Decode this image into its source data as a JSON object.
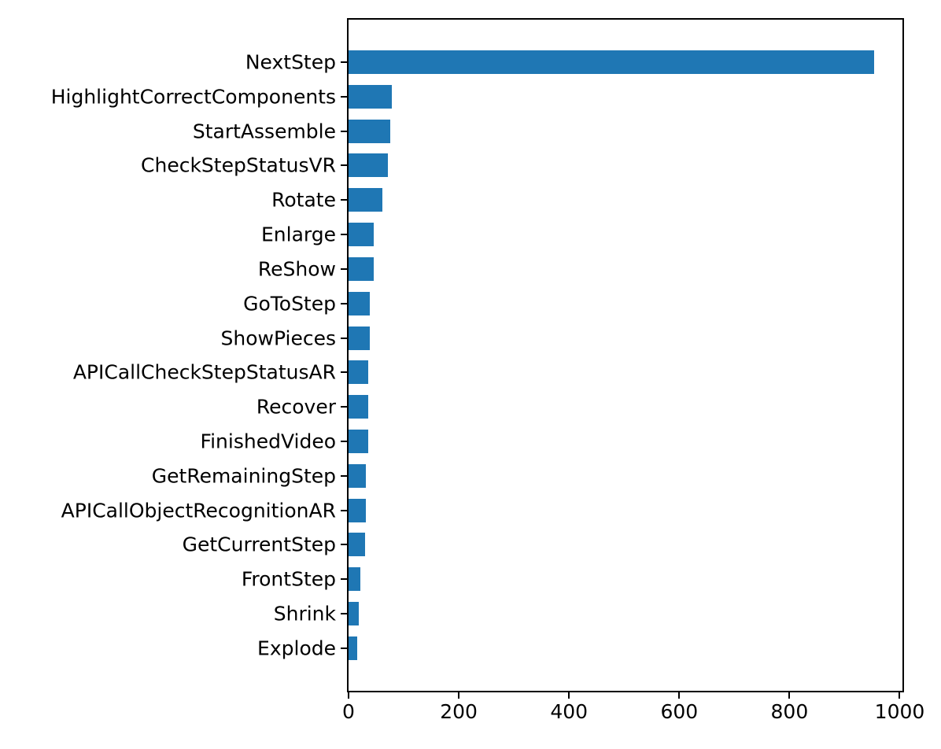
{
  "chart_data": {
    "type": "bar",
    "orientation": "horizontal",
    "categories": [
      "NextStep",
      "HighlightCorrectComponents",
      "StartAssemble",
      "CheckStepStatusVR",
      "Rotate",
      "Enlarge",
      "ReShow",
      "GoToStep",
      "ShowPieces",
      "APICallCheckStepStatusAR",
      "Recover",
      "FinishedVideo",
      "GetRemainingStep",
      "APICallObjectRecognitionAR",
      "GetCurrentStep",
      "FrontStep",
      "Shrink",
      "Explode"
    ],
    "values": [
      954,
      79,
      76,
      72,
      61,
      46,
      45,
      39,
      38,
      36,
      36,
      35,
      31,
      31,
      30,
      22,
      19,
      15
    ],
    "x_ticks": [
      0,
      200,
      400,
      600,
      800,
      1000
    ],
    "xlim": [
      0,
      1005
    ],
    "bar_color": "#1f77b4",
    "title": "",
    "xlabel": "",
    "ylabel": "",
    "grid": false,
    "legend_position": "none"
  }
}
